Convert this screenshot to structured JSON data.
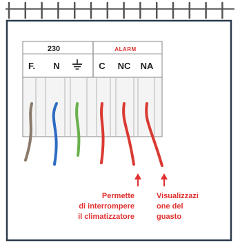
{
  "terminal_block": {
    "group_left_label": "230",
    "group_right_label": "ALARM",
    "terminals": [
      {
        "id": "f",
        "label": "F."
      },
      {
        "id": "n",
        "label": "N"
      },
      {
        "id": "pe",
        "label": "",
        "icon": "ground-icon"
      },
      {
        "id": "c",
        "label": "C"
      },
      {
        "id": "nc",
        "label": "NC"
      },
      {
        "id": "na",
        "label": "NA"
      }
    ]
  },
  "wires": [
    {
      "terminal": "f",
      "color": "#8a7a6a"
    },
    {
      "terminal": "n",
      "color": "#2d6bc2"
    },
    {
      "terminal": "pe",
      "color": "#6ab04c"
    },
    {
      "terminal": "c",
      "color": "#d93a32"
    },
    {
      "terminal": "nc",
      "color": "#d93a32"
    },
    {
      "terminal": "na",
      "color": "#d93a32"
    }
  ],
  "notes": {
    "nc": {
      "lines": [
        "Permette",
        "di interrompere",
        "il climatizzatore"
      ]
    },
    "na": {
      "lines": [
        "Visualizzazi",
        "one del",
        "guasto"
      ]
    }
  },
  "colors": {
    "frame": "#2a3a4a",
    "accent": "#e03030",
    "ring": "#555555",
    "label": "#222222"
  }
}
